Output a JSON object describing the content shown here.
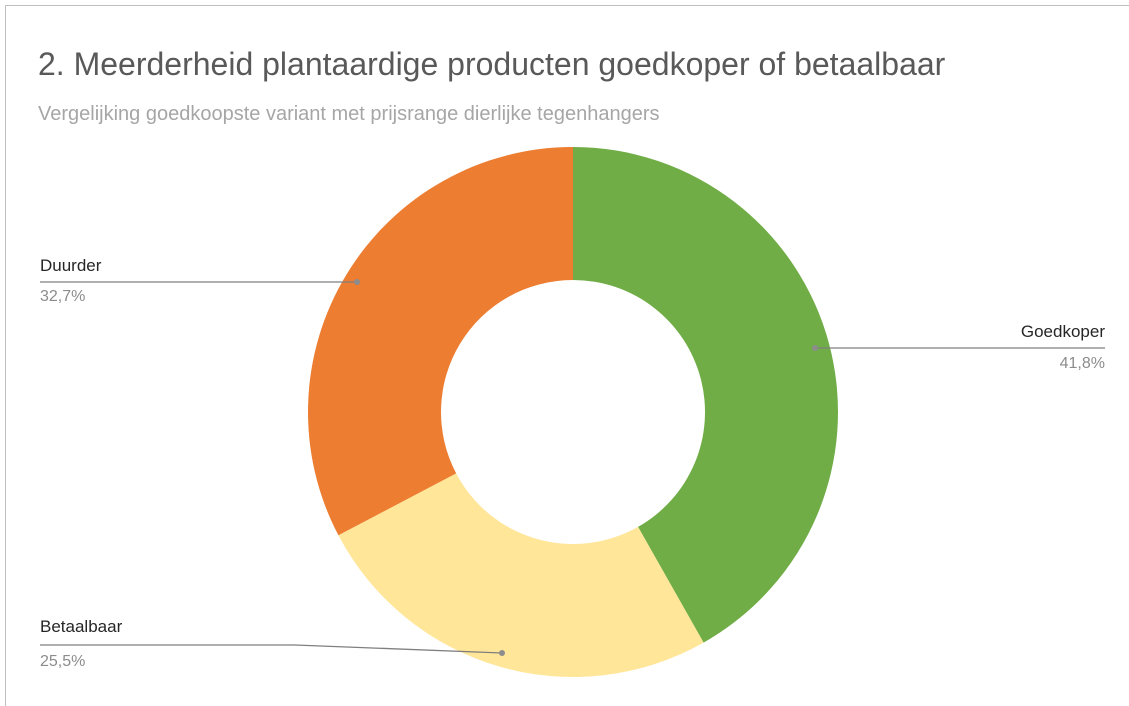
{
  "chart_data": {
    "type": "pie",
    "donut": true,
    "title": "2. Meerderheid plantaardige producten goedkoper of betaalbaar",
    "subtitle": "Vergelijking goedkoopste variant met prijsrange dierlijke tegenhangers",
    "categories": [
      "Goedkoper",
      "Betaalbaar",
      "Duurder"
    ],
    "values": [
      41.8,
      25.5,
      32.7
    ],
    "value_labels": [
      "41,8%",
      "25,5%",
      "32,7%"
    ],
    "colors": [
      "#70ad47",
      "#ffe699",
      "#ed7d31"
    ]
  }
}
